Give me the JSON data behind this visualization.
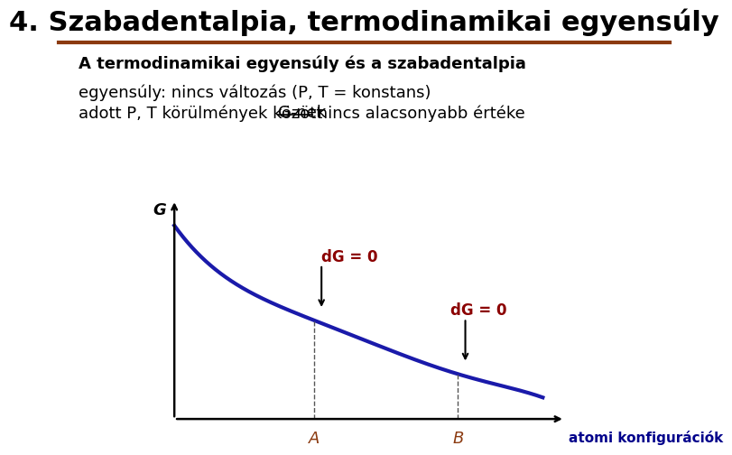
{
  "title": "4. Szabadentalpia, termodinamikai egyensúly",
  "title_color": "#000000",
  "title_fontsize": 22,
  "title_bold": true,
  "separator_color": "#8B3A10",
  "subtitle": "A termodinamikai egyensúly és a szabadentalpia",
  "subtitle_fontsize": 13,
  "line1": "egyensúly: nincs változás (P, T = konstans)",
  "line2_part1": "adott P, T körülmények között ",
  "line2_underline": "G-nek",
  "line2_part2": " nincs alacsonyabb értéke",
  "text_fontsize": 13,
  "curve_color": "#1a1aaa",
  "curve_linewidth": 3,
  "axis_color": "#000000",
  "dashed_color": "#555555",
  "label_A": "A",
  "label_B": "B",
  "label_G": "G",
  "label_x": "atomi konfigurációk",
  "label_dG1": "dG = 0",
  "label_dG2": "dG = 0",
  "label_color_dG": "#8B0000",
  "label_color_axis": "#000000",
  "label_color_x": "#00008B",
  "label_color_AB": "#8B3A10",
  "bg_color": "#ffffff"
}
